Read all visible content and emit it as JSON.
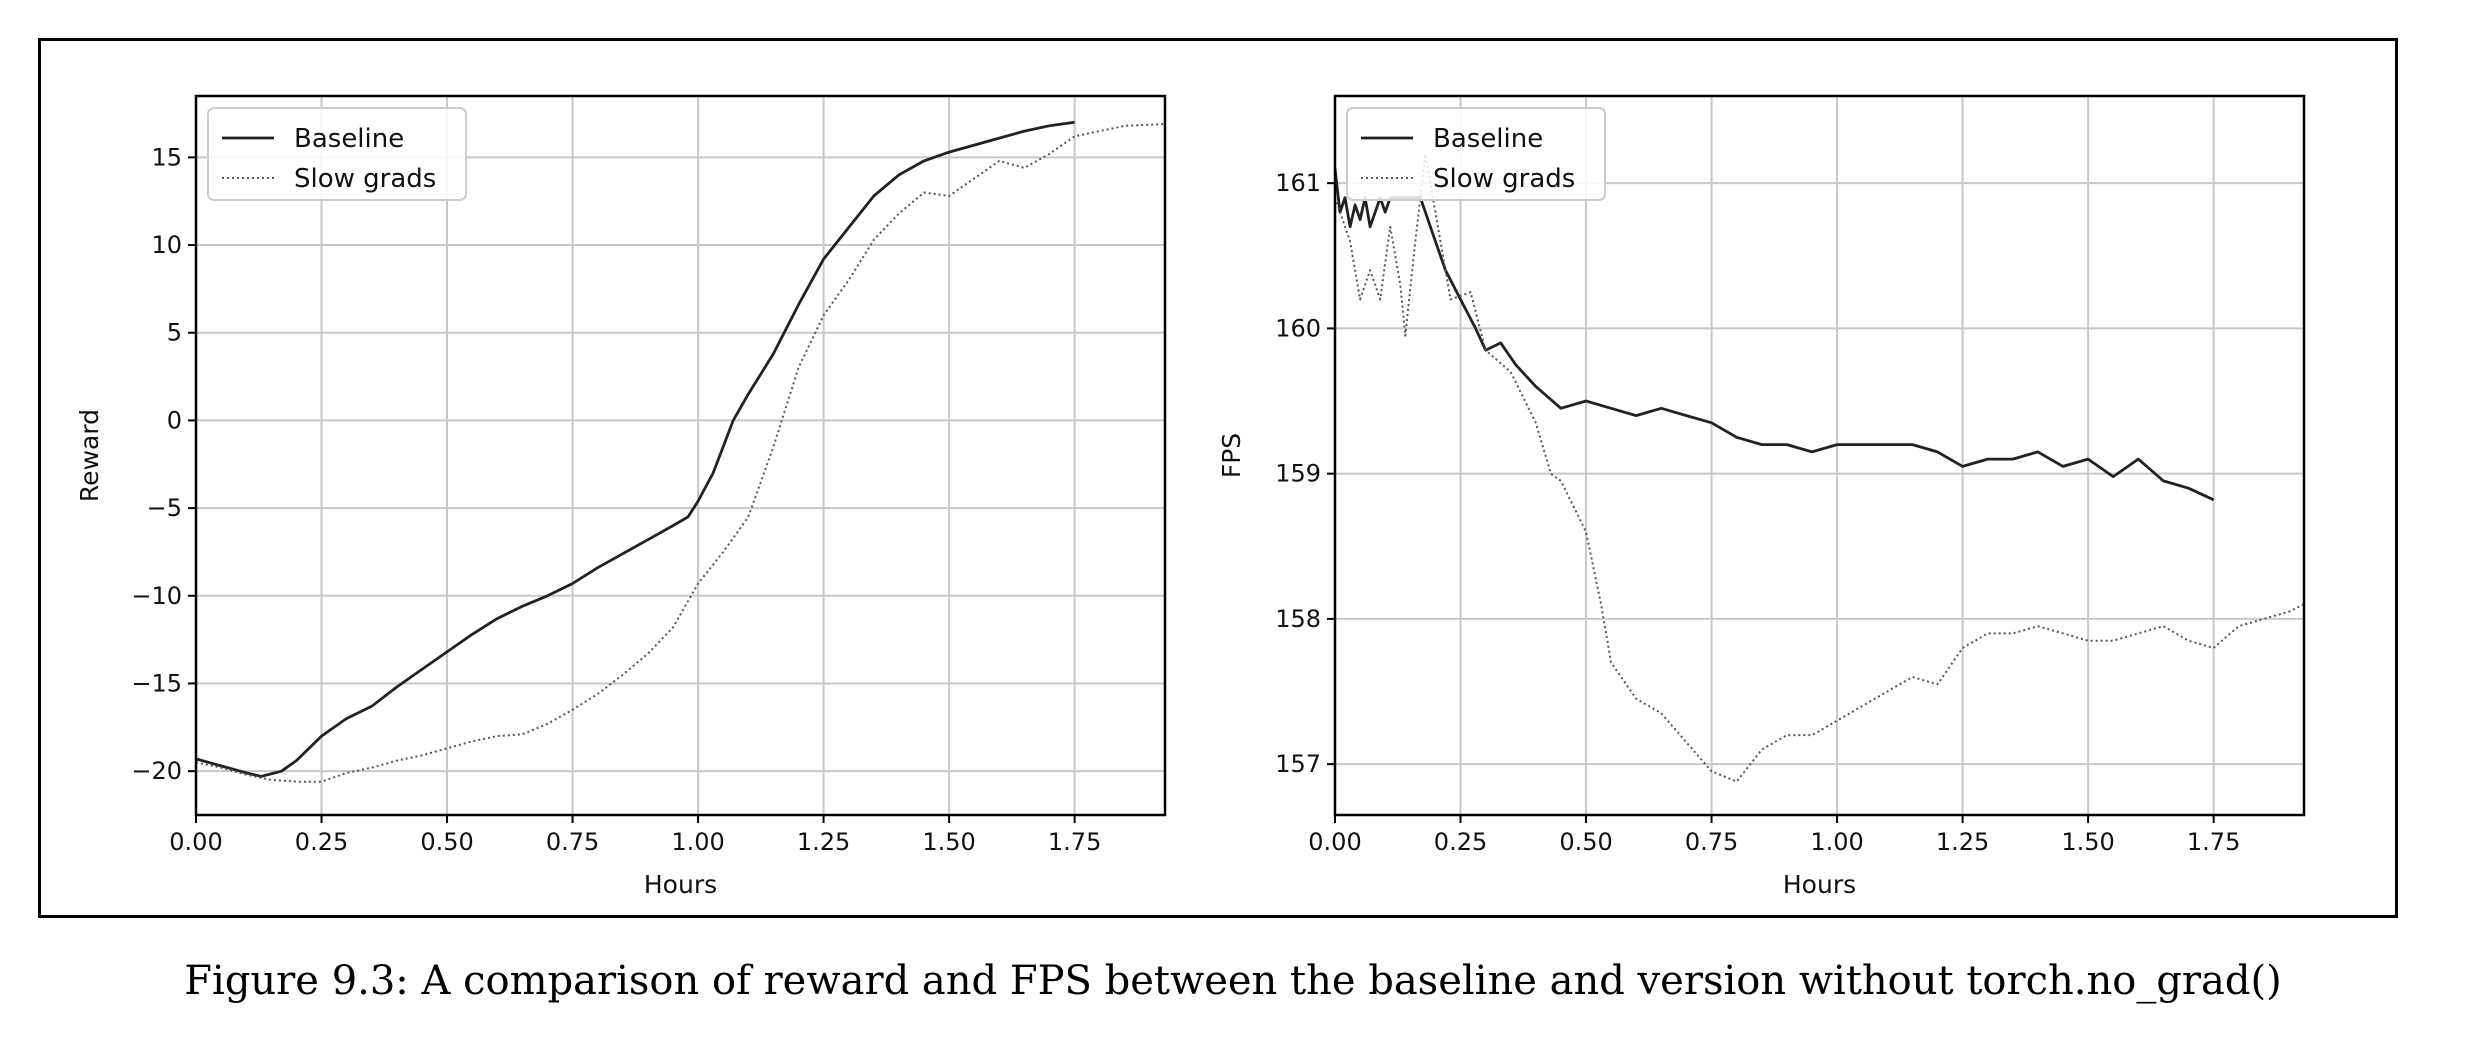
{
  "caption": "Figure 9.3: A comparison of reward and FPS between the baseline and version without torch.no_grad()",
  "chart_data": [
    {
      "type": "line",
      "xlabel": "Hours",
      "ylabel": "Reward",
      "xlim": [
        0,
        1.93
      ],
      "ylim": [
        -22.5,
        18.5
      ],
      "xticks": [
        0,
        0.25,
        0.5,
        0.75,
        1.0,
        1.25,
        1.5,
        1.75
      ],
      "xtick_labels": [
        "0.00",
        "0.25",
        "0.50",
        "0.75",
        "1.00",
        "1.25",
        "1.50",
        "1.75"
      ],
      "yticks": [
        -20,
        -15,
        -10,
        -5,
        0,
        5,
        10,
        15
      ],
      "ytick_labels": [
        "−20",
        "−15",
        "−10",
        "−5",
        "0",
        "5",
        "10",
        "15"
      ],
      "grid": true,
      "legend": "upper-left",
      "series": [
        {
          "name": "Baseline",
          "style": "solid",
          "color": "#222222",
          "x": [
            0,
            0.05,
            0.1,
            0.13,
            0.17,
            0.2,
            0.25,
            0.3,
            0.35,
            0.4,
            0.45,
            0.5,
            0.55,
            0.6,
            0.65,
            0.7,
            0.75,
            0.8,
            0.85,
            0.9,
            0.95,
            0.98,
            1.0,
            1.03,
            1.05,
            1.07,
            1.1,
            1.15,
            1.2,
            1.25,
            1.3,
            1.35,
            1.4,
            1.45,
            1.5,
            1.55,
            1.6,
            1.65,
            1.7,
            1.75
          ],
          "y": [
            -19.3,
            -19.7,
            -20.1,
            -20.3,
            -20.0,
            -19.4,
            -18.0,
            -17.0,
            -16.3,
            -15.2,
            -14.2,
            -13.2,
            -12.2,
            -11.3,
            -10.6,
            -10.0,
            -9.3,
            -8.4,
            -7.6,
            -6.8,
            -6.0,
            -5.5,
            -4.6,
            -3.0,
            -1.5,
            0.0,
            1.5,
            3.8,
            6.6,
            9.2,
            11.0,
            12.8,
            14.0,
            14.8,
            15.3,
            15.7,
            16.1,
            16.5,
            16.8,
            17.0
          ]
        },
        {
          "name": "Slow grads",
          "style": "dotted",
          "color": "#555555",
          "x": [
            0,
            0.05,
            0.1,
            0.15,
            0.2,
            0.25,
            0.3,
            0.35,
            0.4,
            0.45,
            0.5,
            0.55,
            0.6,
            0.65,
            0.7,
            0.75,
            0.8,
            0.85,
            0.9,
            0.95,
            1.0,
            1.05,
            1.1,
            1.15,
            1.2,
            1.25,
            1.3,
            1.35,
            1.4,
            1.45,
            1.5,
            1.55,
            1.6,
            1.65,
            1.7,
            1.75,
            1.8,
            1.85,
            1.93
          ],
          "y": [
            -19.5,
            -19.8,
            -20.2,
            -20.5,
            -20.6,
            -20.6,
            -20.1,
            -19.8,
            -19.4,
            -19.1,
            -18.7,
            -18.3,
            -18.0,
            -17.9,
            -17.3,
            -16.5,
            -15.6,
            -14.5,
            -13.3,
            -11.8,
            -9.3,
            -7.5,
            -5.5,
            -1.5,
            3.0,
            6.0,
            8.0,
            10.3,
            11.8,
            13.0,
            12.8,
            13.8,
            14.8,
            14.4,
            15.2,
            16.2,
            16.5,
            16.8,
            16.9
          ]
        }
      ]
    },
    {
      "type": "line",
      "xlabel": "Hours",
      "ylabel": "FPS",
      "xlim": [
        0,
        1.93
      ],
      "ylim": [
        156.65,
        161.6
      ],
      "xticks": [
        0,
        0.25,
        0.5,
        0.75,
        1.0,
        1.25,
        1.5,
        1.75
      ],
      "xtick_labels": [
        "0.00",
        "0.25",
        "0.50",
        "0.75",
        "1.00",
        "1.25",
        "1.50",
        "1.75"
      ],
      "yticks": [
        157,
        158,
        159,
        160,
        161
      ],
      "ytick_labels": [
        "157",
        "158",
        "159",
        "160",
        "161"
      ],
      "grid": true,
      "legend": "upper-left",
      "series": [
        {
          "name": "Baseline",
          "style": "solid",
          "color": "#222222",
          "x": [
            0,
            0.01,
            0.02,
            0.03,
            0.04,
            0.05,
            0.06,
            0.07,
            0.08,
            0.09,
            0.1,
            0.11,
            0.17,
            0.2,
            0.22,
            0.25,
            0.28,
            0.3,
            0.33,
            0.36,
            0.4,
            0.45,
            0.5,
            0.55,
            0.6,
            0.65,
            0.7,
            0.75,
            0.8,
            0.85,
            0.9,
            0.95,
            1.0,
            1.05,
            1.1,
            1.15,
            1.2,
            1.25,
            1.3,
            1.35,
            1.4,
            1.45,
            1.5,
            1.55,
            1.6,
            1.65,
            1.7,
            1.75
          ],
          "y": [
            161.1,
            160.8,
            160.9,
            160.7,
            160.85,
            160.75,
            160.9,
            160.7,
            160.8,
            160.9,
            160.8,
            160.9,
            160.9,
            160.6,
            160.4,
            160.2,
            160.0,
            159.85,
            159.9,
            159.75,
            159.6,
            159.45,
            159.5,
            159.45,
            159.4,
            159.45,
            159.4,
            159.35,
            159.25,
            159.2,
            159.2,
            159.15,
            159.2,
            159.2,
            159.2,
            159.2,
            159.15,
            159.05,
            159.1,
            159.1,
            159.15,
            159.05,
            159.1,
            158.98,
            159.1,
            158.95,
            158.9,
            158.82
          ]
        },
        {
          "name": "Slow grads",
          "style": "dotted",
          "color": "#555555",
          "x": [
            0,
            0.03,
            0.05,
            0.07,
            0.09,
            0.11,
            0.13,
            0.14,
            0.16,
            0.18,
            0.2,
            0.23,
            0.27,
            0.3,
            0.35,
            0.4,
            0.43,
            0.45,
            0.5,
            0.53,
            0.55,
            0.6,
            0.65,
            0.7,
            0.75,
            0.8,
            0.85,
            0.9,
            0.95,
            1.0,
            1.05,
            1.1,
            1.15,
            1.2,
            1.25,
            1.3,
            1.35,
            1.4,
            1.45,
            1.5,
            1.55,
            1.6,
            1.65,
            1.7,
            1.75,
            1.8,
            1.85,
            1.9,
            1.93
          ],
          "y": [
            160.9,
            160.6,
            160.2,
            160.4,
            160.2,
            160.7,
            160.3,
            159.95,
            160.6,
            161.2,
            160.8,
            160.2,
            160.25,
            159.85,
            159.7,
            159.35,
            159.0,
            158.95,
            158.6,
            158.1,
            157.7,
            157.45,
            157.35,
            157.15,
            156.95,
            156.88,
            157.1,
            157.2,
            157.2,
            157.3,
            157.4,
            157.5,
            157.6,
            157.55,
            157.8,
            157.9,
            157.9,
            157.95,
            157.9,
            157.85,
            157.85,
            157.9,
            157.95,
            157.85,
            157.8,
            157.95,
            158.0,
            158.05,
            158.1
          ]
        }
      ]
    }
  ]
}
